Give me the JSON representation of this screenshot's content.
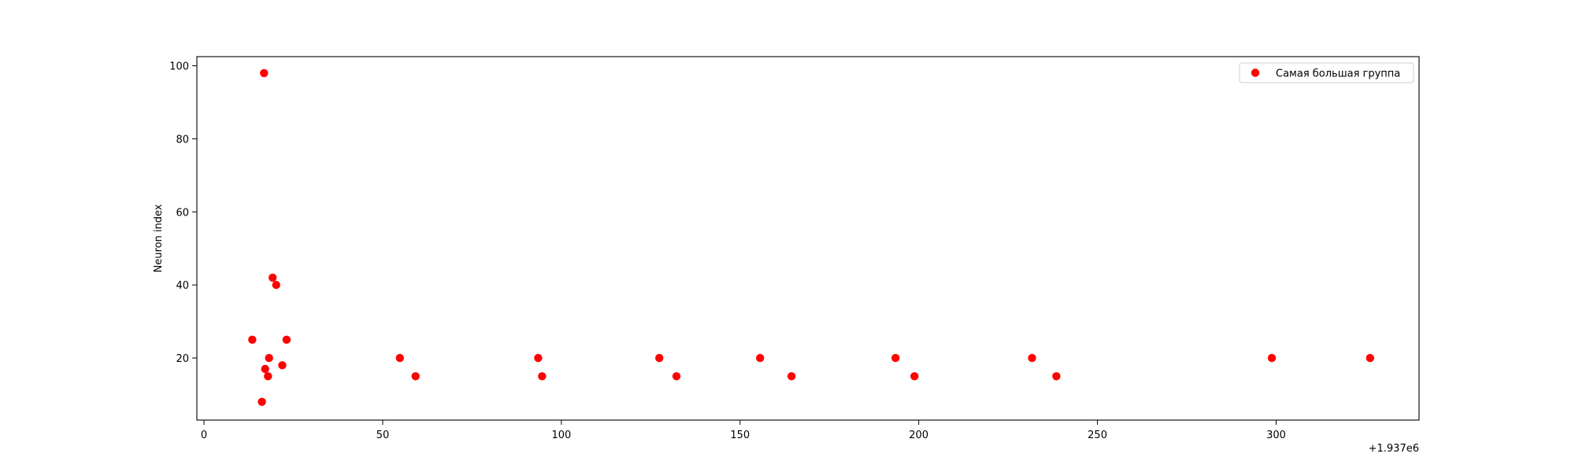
{
  "chart_data": {
    "type": "scatter",
    "title": "",
    "xlabel": "",
    "ylabel": "Neuron index",
    "x_offset_label": "+1.937e6",
    "xlim": [
      -2,
      340
    ],
    "ylim": [
      3,
      102.5
    ],
    "x_ticks": [
      0,
      50,
      100,
      150,
      200,
      250,
      300
    ],
    "y_ticks": [
      20,
      40,
      60,
      80,
      100
    ],
    "grid": false,
    "legend_position": "top-right",
    "series": [
      {
        "name": "Самая большая группа",
        "color": "#ff0000",
        "points": [
          {
            "x": 13.5,
            "y": 25
          },
          {
            "x": 16.2,
            "y": 8
          },
          {
            "x": 16.8,
            "y": 98
          },
          {
            "x": 17.1,
            "y": 17
          },
          {
            "x": 17.9,
            "y": 15
          },
          {
            "x": 18.2,
            "y": 20
          },
          {
            "x": 19.2,
            "y": 42
          },
          {
            "x": 20.2,
            "y": 40
          },
          {
            "x": 21.9,
            "y": 18
          },
          {
            "x": 23.1,
            "y": 25
          },
          {
            "x": 54.8,
            "y": 20
          },
          {
            "x": 59.2,
            "y": 15
          },
          {
            "x": 93.5,
            "y": 20
          },
          {
            "x": 94.6,
            "y": 15
          },
          {
            "x": 127.4,
            "y": 20
          },
          {
            "x": 132.2,
            "y": 15
          },
          {
            "x": 155.6,
            "y": 20
          },
          {
            "x": 164.4,
            "y": 15
          },
          {
            "x": 193.5,
            "y": 20
          },
          {
            "x": 198.8,
            "y": 15
          },
          {
            "x": 231.7,
            "y": 20
          },
          {
            "x": 238.5,
            "y": 15
          },
          {
            "x": 298.8,
            "y": 20
          },
          {
            "x": 326.3,
            "y": 20
          }
        ]
      }
    ]
  }
}
